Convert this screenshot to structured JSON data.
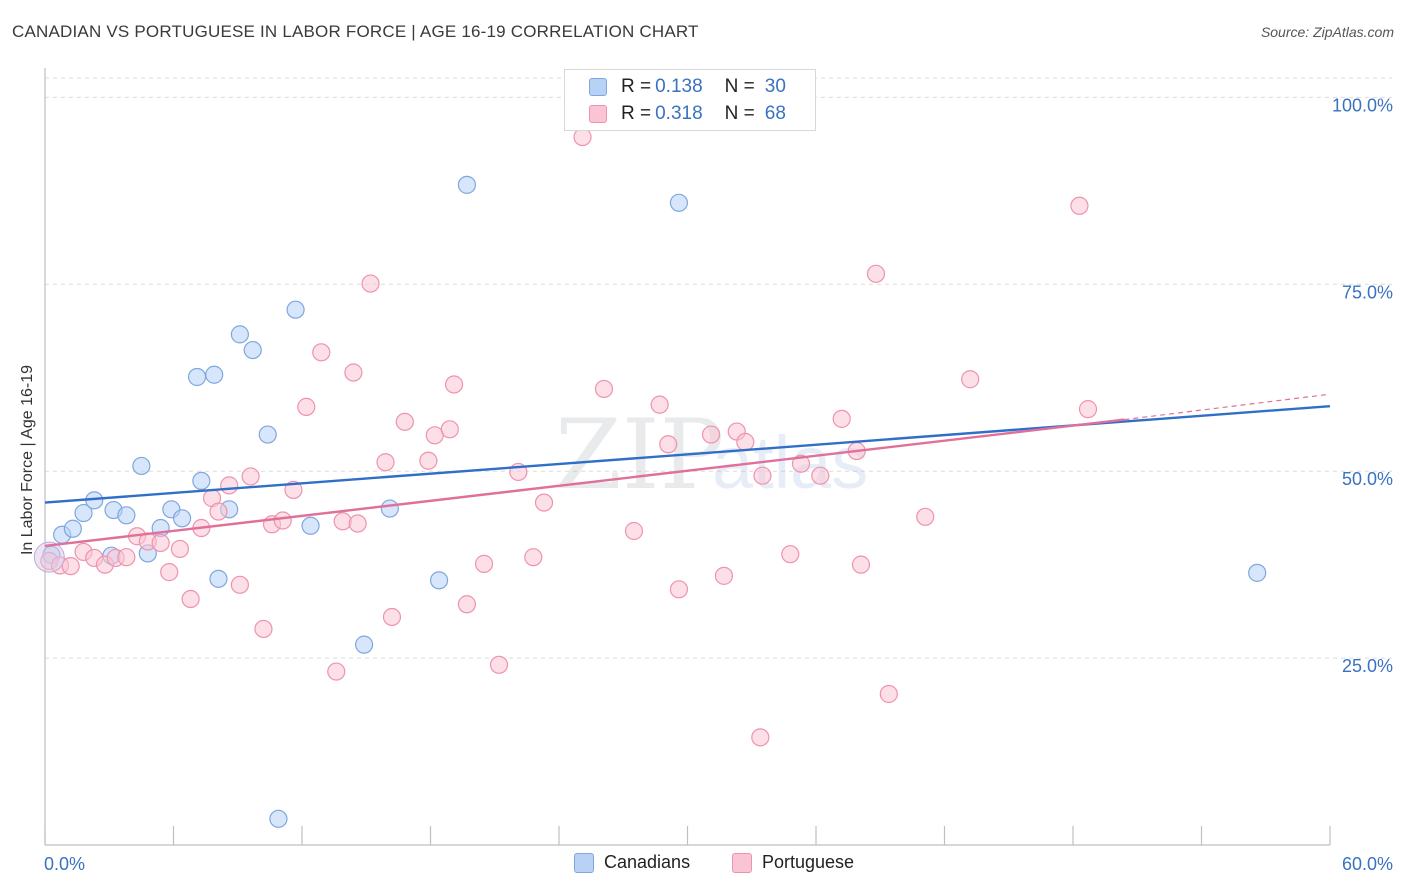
{
  "title": "CANADIAN VS PORTUGUESE IN LABOR FORCE | AGE 16-19 CORRELATION CHART",
  "source": "Source: ZipAtlas.com",
  "watermark": {
    "zip": "ZIP",
    "atlas": "atlas"
  },
  "legend": {
    "rows": [
      {
        "r_label": "R =",
        "r_value": "0.138",
        "n_label": "N =",
        "n_value": "30",
        "fill": "#b7d2f5",
        "stroke": "#7fa7dd"
      },
      {
        "r_label": "R =",
        "r_value": "0.318",
        "n_label": "N =",
        "n_value": "68",
        "fill": "#f9c4d4",
        "stroke": "#ee93ae"
      }
    ]
  },
  "bottom_legend": {
    "canadians": "Canadians",
    "portuguese": "Portuguese"
  },
  "chart_data": {
    "type": "scatter",
    "title": "CANADIAN VS PORTUGUESE IN LABOR FORCE | AGE 16-19 CORRELATION CHART",
    "xlabel": "",
    "ylabel": "In Labor Force | Age 16-19",
    "xlim": [
      0,
      60
    ],
    "ylim": [
      0,
      105
    ],
    "x_tick_labels": {
      "left": "0.0%",
      "right": "60.0%"
    },
    "y_ticks": [
      {
        "value": 100,
        "label": "100.0%"
      },
      {
        "value": 75,
        "label": "75.0%"
      },
      {
        "value": 50,
        "label": "50.0%"
      },
      {
        "value": 25,
        "label": "25.0%"
      }
    ],
    "series": [
      {
        "name": "Canadians",
        "color": "#7fa7dd",
        "fill": "#b7d2f5",
        "line_color": "#2f6fc9",
        "trend": {
          "x0": 0,
          "y0": 45.8,
          "x1": 60,
          "y1": 58.7
        },
        "points": [
          [
            0.3,
            38.8
          ],
          [
            0.8,
            41.5
          ],
          [
            1.3,
            42.3
          ],
          [
            1.8,
            44.4
          ],
          [
            2.3,
            46.1
          ],
          [
            3.1,
            38.7
          ],
          [
            3.2,
            44.8
          ],
          [
            3.8,
            44.1
          ],
          [
            4.5,
            50.7
          ],
          [
            4.8,
            39.0
          ],
          [
            5.4,
            42.4
          ],
          [
            5.9,
            44.9
          ],
          [
            6.4,
            43.7
          ],
          [
            7.1,
            62.6
          ],
          [
            7.3,
            48.7
          ],
          [
            7.9,
            62.9
          ],
          [
            8.1,
            35.6
          ],
          [
            8.6,
            44.9
          ],
          [
            9.1,
            68.3
          ],
          [
            9.7,
            66.2
          ],
          [
            10.4,
            54.9
          ],
          [
            10.9,
            3.5
          ],
          [
            11.7,
            71.6
          ],
          [
            12.4,
            42.7
          ],
          [
            14.9,
            26.8
          ],
          [
            16.1,
            45.0
          ],
          [
            18.4,
            35.4
          ],
          [
            19.7,
            88.3
          ],
          [
            29.6,
            85.9
          ],
          [
            56.6,
            36.4
          ]
        ]
      },
      {
        "name": "Portuguese",
        "color": "#ee93ae",
        "fill": "#f9c4d4",
        "line_color": "#e0709a",
        "trend": {
          "x0": 0,
          "y0": 40.0,
          "x1": 50.4,
          "y1": 56.9
        },
        "trend_dashed": {
          "x0": 50.4,
          "y0": 56.9,
          "x1": 60,
          "y1": 60.3
        },
        "points": [
          [
            0.2,
            38.0
          ],
          [
            0.7,
            37.4
          ],
          [
            1.2,
            37.3
          ],
          [
            1.8,
            39.2
          ],
          [
            2.3,
            38.4
          ],
          [
            2.8,
            37.5
          ],
          [
            3.3,
            38.4
          ],
          [
            3.8,
            38.5
          ],
          [
            4.3,
            41.3
          ],
          [
            4.8,
            40.6
          ],
          [
            5.4,
            40.4
          ],
          [
            5.8,
            36.5
          ],
          [
            6.3,
            39.6
          ],
          [
            6.8,
            32.9
          ],
          [
            7.3,
            42.4
          ],
          [
            7.8,
            46.4
          ],
          [
            8.1,
            44.6
          ],
          [
            8.6,
            48.1
          ],
          [
            9.1,
            34.8
          ],
          [
            9.6,
            49.3
          ],
          [
            10.2,
            28.9
          ],
          [
            10.6,
            42.9
          ],
          [
            11.1,
            43.4
          ],
          [
            11.6,
            47.5
          ],
          [
            12.2,
            58.6
          ],
          [
            12.9,
            65.9
          ],
          [
            13.6,
            23.2
          ],
          [
            13.9,
            43.3
          ],
          [
            14.4,
            63.2
          ],
          [
            14.6,
            43.0
          ],
          [
            15.2,
            75.1
          ],
          [
            15.9,
            51.2
          ],
          [
            16.2,
            30.5
          ],
          [
            16.8,
            56.6
          ],
          [
            17.9,
            51.4
          ],
          [
            18.2,
            54.8
          ],
          [
            18.9,
            55.6
          ],
          [
            19.1,
            61.6
          ],
          [
            19.7,
            32.2
          ],
          [
            20.5,
            37.6
          ],
          [
            21.2,
            24.1
          ],
          [
            22.1,
            49.9
          ],
          [
            22.8,
            38.5
          ],
          [
            23.3,
            45.8
          ],
          [
            25.1,
            94.7
          ],
          [
            26.1,
            61.0
          ],
          [
            27.5,
            42.0
          ],
          [
            28.7,
            58.9
          ],
          [
            29.1,
            53.6
          ],
          [
            29.6,
            34.2
          ],
          [
            31.1,
            54.9
          ],
          [
            31.7,
            36.0
          ],
          [
            32.3,
            55.3
          ],
          [
            32.7,
            53.9
          ],
          [
            33.5,
            49.4
          ],
          [
            34.8,
            38.9
          ],
          [
            35.3,
            51.0
          ],
          [
            36.2,
            49.4
          ],
          [
            37.2,
            57.0
          ],
          [
            37.9,
            52.7
          ],
          [
            38.1,
            37.5
          ],
          [
            38.8,
            76.4
          ],
          [
            39.4,
            20.2
          ],
          [
            41.1,
            43.9
          ],
          [
            43.2,
            62.3
          ],
          [
            48.3,
            85.5
          ],
          [
            48.7,
            58.3
          ],
          [
            33.4,
            14.4
          ]
        ]
      }
    ]
  }
}
